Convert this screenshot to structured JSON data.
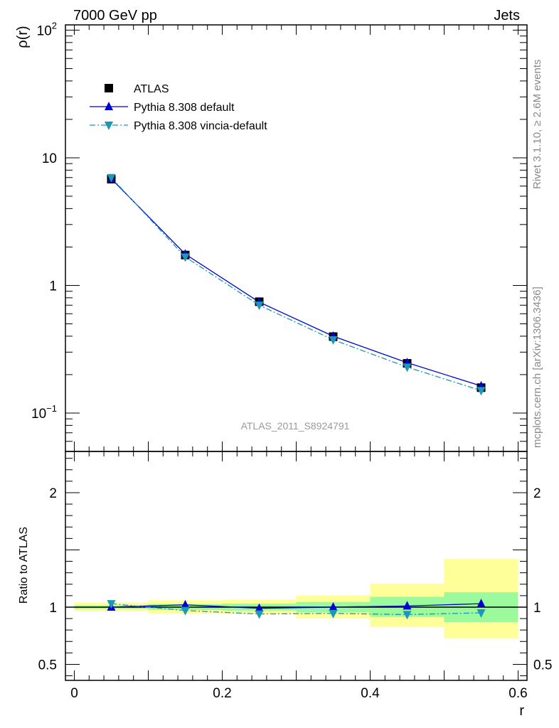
{
  "header": {
    "left": "7000 GeV pp",
    "right": "Jets"
  },
  "side_text": {
    "top": "Rivet 3.1.10, ≥ 2.6M events",
    "bottom": "mcplots.cern.ch [arXiv:1306.3436]"
  },
  "watermark": "ATLAS_2011_S8924791",
  "chart_data": [
    {
      "panel": "main",
      "type": "line",
      "ylabel": "ρ(r)",
      "yscale": "log",
      "ylim": [
        0.05,
        110
      ],
      "xlim": [
        -0.012,
        0.612
      ],
      "y_tick_labels": [
        {
          "value": 100,
          "base": "10",
          "exp": "2"
        },
        {
          "value": 10,
          "base": "10",
          "exp": ""
        },
        {
          "value": 1,
          "base": "1",
          "exp": ""
        },
        {
          "value": 0.1,
          "base": "10",
          "exp": "−1"
        }
      ],
      "x": [
        0.05,
        0.15,
        0.25,
        0.35,
        0.45,
        0.55
      ],
      "series": [
        {
          "name": "ATLAS",
          "marker": "square",
          "color": "#000000",
          "values": [
            6.8,
            1.73,
            0.745,
            0.397,
            0.245,
            0.158
          ]
        },
        {
          "name": "Pythia 8.308 default",
          "marker": "triangle-up",
          "line": "solid",
          "color": "#0000cc",
          "values": [
            6.85,
            1.76,
            0.74,
            0.4,
            0.248,
            0.163
          ]
        },
        {
          "name": "Pythia 8.308 vincia-default",
          "marker": "triangle-down",
          "line": "dashdot",
          "color": "#1c97b8",
          "values": [
            7.0,
            1.67,
            0.7,
            0.375,
            0.229,
            0.15
          ]
        }
      ],
      "legend_placement": "top-left"
    },
    {
      "panel": "ratio",
      "type": "line",
      "ylabel": "Ratio to ATLAS",
      "ylim": [
        0.36,
        2.36
      ],
      "y_tick_labels": [
        "2",
        "1",
        "0.5"
      ],
      "y_tick_values": [
        2,
        1,
        0.5
      ],
      "xlabel": "r",
      "x_tick_labels": [
        "0",
        "0.2",
        "0.4",
        "0.6"
      ],
      "x_tick_values": [
        0,
        0.2,
        0.4,
        0.6
      ],
      "bins": [
        [
          0.0,
          0.1
        ],
        [
          0.1,
          0.2
        ],
        [
          0.2,
          0.3
        ],
        [
          0.3,
          0.4
        ],
        [
          0.4,
          0.5
        ],
        [
          0.5,
          0.6
        ]
      ],
      "bands": {
        "inner": {
          "color": "#9bfa9b",
          "low": [
            0.985,
            0.975,
            0.97,
            0.955,
            0.915,
            0.87
          ],
          "high": [
            1.015,
            1.025,
            1.03,
            1.045,
            1.09,
            1.13
          ]
        },
        "outer": {
          "color": "#ffff99",
          "low": [
            0.965,
            0.945,
            0.94,
            0.9,
            0.825,
            0.725
          ],
          "high": [
            1.04,
            1.06,
            1.065,
            1.1,
            1.205,
            1.42
          ]
        }
      },
      "x": [
        0.05,
        0.15,
        0.25,
        0.35,
        0.45,
        0.55
      ],
      "series": [
        {
          "name": "Pythia 8.308 default",
          "color": "#0000cc",
          "values": [
            1.0,
            1.02,
            0.99,
            1.0,
            1.01,
            1.03
          ]
        },
        {
          "name": "Pythia 8.308 vincia-default",
          "color": "#1c97b8",
          "values": [
            1.03,
            0.97,
            0.94,
            0.945,
            0.935,
            0.95
          ]
        }
      ]
    }
  ]
}
